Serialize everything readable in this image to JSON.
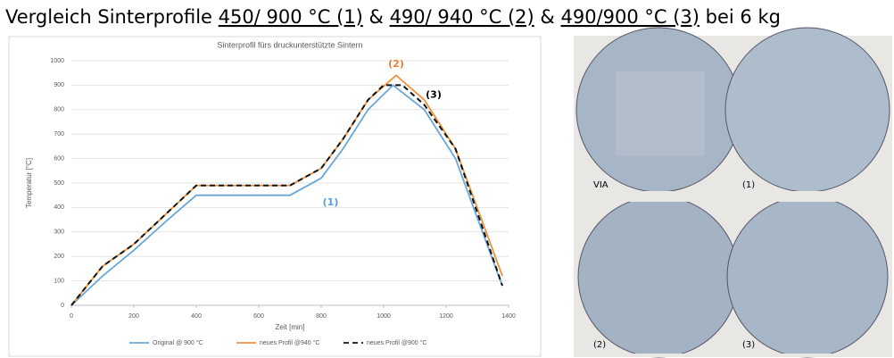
{
  "header": {
    "title_parts": [
      "Vergleich Sinterprofile ",
      "450/ 900 °C (1)",
      " & ",
      "490/ 940 °C (2)",
      " & ",
      "490/900 °C (3)",
      " bei 6 kg"
    ]
  },
  "chart_data": {
    "type": "line",
    "title": "Sinterprofil fürs druckunterstützte Sintern",
    "xlabel": "Zeit [min]",
    "ylabel": "Temperatur [°C]",
    "xlim": [
      0,
      1400
    ],
    "xticks": [
      0,
      200,
      400,
      600,
      800,
      1000,
      1200,
      1400
    ],
    "ylim": [
      0,
      1000
    ],
    "yticks": [
      0,
      100,
      200,
      300,
      400,
      500,
      600,
      700,
      800,
      900,
      1000
    ],
    "grid": true,
    "legend": "bottom",
    "series": [
      {
        "name": "Original @ 900 °C",
        "color": "#6aa6d8",
        "dash": false,
        "x": [
          0,
          100,
          200,
          300,
          400,
          700,
          800,
          870,
          950,
          1030,
          1130,
          1230,
          1380
        ],
        "values": [
          0,
          120,
          225,
          340,
          450,
          450,
          520,
          640,
          800,
          900,
          800,
          600,
          80
        ]
      },
      {
        "name": "neues Profil @940 °C",
        "color": "#f0913c",
        "dash": false,
        "x": [
          0,
          100,
          200,
          300,
          400,
          700,
          800,
          870,
          950,
          1040,
          1130,
          1230,
          1380
        ],
        "values": [
          0,
          160,
          250,
          370,
          490,
          490,
          560,
          680,
          840,
          940,
          840,
          640,
          120
        ]
      },
      {
        "name": "neues Profil @900 °C",
        "color": "#111111",
        "dash": true,
        "x": [
          0,
          100,
          200,
          300,
          400,
          700,
          800,
          870,
          950,
          1000,
          1060,
          1130,
          1230,
          1380
        ],
        "values": [
          0,
          160,
          250,
          370,
          490,
          490,
          560,
          680,
          840,
          900,
          900,
          820,
          640,
          80
        ]
      }
    ],
    "annotations": [
      {
        "text": "(1)",
        "x": 830,
        "y": 420,
        "color": "#5b9bd5"
      },
      {
        "text": "(2)",
        "x": 1040,
        "y": 985,
        "color": "#ed7d31"
      },
      {
        "text": "(3)",
        "x": 1160,
        "y": 860,
        "color": "#000000"
      }
    ]
  },
  "photo": {
    "labels": [
      "VIA",
      "(1)",
      "(2)",
      "(3)"
    ]
  }
}
